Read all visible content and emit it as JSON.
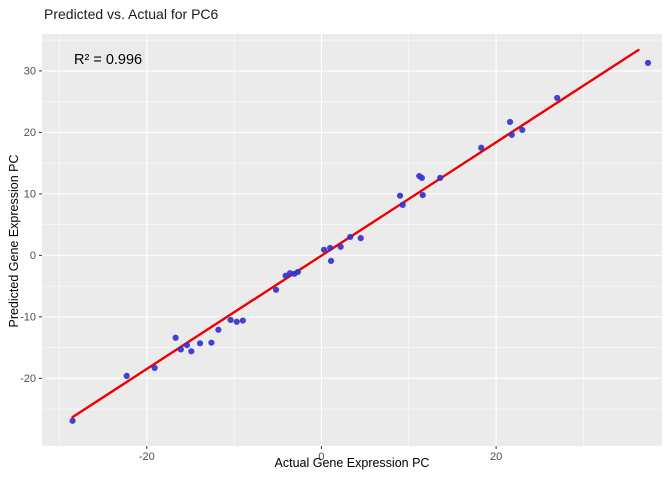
{
  "chart_data": {
    "type": "scatter",
    "title": "Predicted vs. Actual for PC6",
    "annotation": "R² = 0.996",
    "xlabel": "Actual Gene Expression PC",
    "ylabel": "Predicted Gene Expression PC",
    "xlim": [
      -32,
      39
    ],
    "ylim": [
      -31,
      36
    ],
    "x_ticks": [
      -20,
      0,
      20
    ],
    "y_ticks": [
      -20,
      -10,
      0,
      10,
      20,
      30
    ],
    "x_minor_ticks": [
      -30,
      -10,
      10,
      30
    ],
    "y_minor_ticks": [
      -25,
      -15,
      -5,
      5,
      15,
      25,
      35
    ],
    "grid": true,
    "legend": "none",
    "points": [
      [
        -28.5,
        -26.9
      ],
      [
        -22.3,
        -19.6
      ],
      [
        -19.1,
        -18.3
      ],
      [
        -16.7,
        -13.4
      ],
      [
        -16.1,
        -15.3
      ],
      [
        -15.4,
        -14.6
      ],
      [
        -14.9,
        -15.6
      ],
      [
        -13.9,
        -14.3
      ],
      [
        -12.6,
        -14.2
      ],
      [
        -11.8,
        -12.1
      ],
      [
        -10.4,
        -10.5
      ],
      [
        -9.7,
        -10.8
      ],
      [
        -9.0,
        -10.6
      ],
      [
        -5.2,
        -5.6
      ],
      [
        -4.1,
        -3.3
      ],
      [
        -3.6,
        -2.9
      ],
      [
        -3.1,
        -3.0
      ],
      [
        -2.7,
        -2.7
      ],
      [
        0.3,
        0.9
      ],
      [
        1.0,
        1.2
      ],
      [
        1.1,
        -0.9
      ],
      [
        2.2,
        1.4
      ],
      [
        3.3,
        3.0
      ],
      [
        4.5,
        2.8
      ],
      [
        9.0,
        9.7
      ],
      [
        9.3,
        8.2
      ],
      [
        11.2,
        12.9
      ],
      [
        11.5,
        12.6
      ],
      [
        11.6,
        9.8
      ],
      [
        13.6,
        12.6
      ],
      [
        18.3,
        17.5
      ],
      [
        21.6,
        21.7
      ],
      [
        21.8,
        19.6
      ],
      [
        23.0,
        20.4
      ],
      [
        27.0,
        25.6
      ],
      [
        37.4,
        31.3
      ]
    ],
    "fit_line": {
      "x1": -28.5,
      "y1": -26.3,
      "x2": 36.3,
      "y2": 33.4
    },
    "colors": {
      "panel": "#EBEBEB",
      "grid": "#FFFFFF",
      "point": "#3333CC",
      "line": "#EE0000",
      "tick_label": "#4D4D4D",
      "tick_mark": "#333333",
      "text": "#000000"
    }
  }
}
